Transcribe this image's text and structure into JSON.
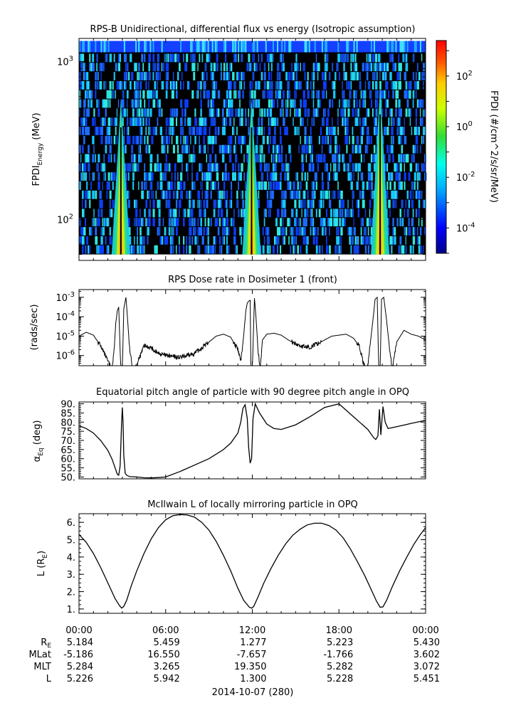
{
  "figure": {
    "date_label": "2014-10-07 (280)",
    "time_ticks": [
      "00:00",
      "06:00",
      "12:00",
      "18:00",
      "00:00"
    ],
    "ephemeris": [
      {
        "label": "R",
        "sub": "E",
        "values": [
          "5.184",
          "5.459",
          "1.277",
          "5.223",
          "5.430"
        ]
      },
      {
        "label": "MLat",
        "sub": "",
        "values": [
          "-5.186",
          "16.550",
          "-7.657",
          "-1.766",
          "3.602"
        ]
      },
      {
        "label": "MLT",
        "sub": "",
        "values": [
          "5.284",
          "3.265",
          "19.350",
          "5.282",
          "3.072"
        ]
      },
      {
        "label": "L",
        "sub": "",
        "values": [
          "5.226",
          "5.942",
          "1.300",
          "5.228",
          "5.451"
        ]
      }
    ]
  },
  "chart_data": [
    {
      "type": "heatmap",
      "title": "RPS-B  Unidirectional, differential flux vs energy (Isotropic assumption)",
      "ylabel_main": "FPDI",
      "ylabel_sub": "Energy",
      "ylabel_unit": " (MeV)",
      "yscale": "log",
      "ylim": [
        55,
        1400
      ],
      "xlim_hours": [
        0,
        24
      ],
      "y_ticks": [
        {
          "base": "10",
          "exp": "2"
        },
        {
          "base": "10",
          "exp": "3"
        }
      ],
      "colorbar": {
        "label": "FPDI (#/cm^2/s/sr/MeV)",
        "scale": "log",
        "range_exp": [
          -5,
          3.4
        ],
        "ticks": [
          {
            "base": "10",
            "exp": "-4"
          },
          {
            "base": "10",
            "exp": "-2"
          },
          {
            "base": "10",
            "exp": "0"
          },
          {
            "base": "10",
            "exp": "2"
          }
        ]
      },
      "peaks_hours": [
        2.9,
        11.95,
        20.85
      ],
      "colors": {
        "high": "#ff0000",
        "mid": "#33dd33",
        "low": "#0000ff",
        "fill": "#000000"
      }
    },
    {
      "type": "line",
      "title": "RPS  Dose rate in Dosimeter 1 (front)",
      "ylabel": "(rads/sec)",
      "yscale": "log",
      "ylim": [
        3e-07,
        0.0025
      ],
      "xlim_hours": [
        0,
        24
      ],
      "y_ticks": [
        {
          "base": "10",
          "exp": "-6"
        },
        {
          "base": "10",
          "exp": "-5"
        },
        {
          "base": "10",
          "exp": "-4"
        },
        {
          "base": "10",
          "exp": "-3"
        }
      ],
      "series": [
        {
          "x_hours": [
            0.0,
            0.5,
            1.0,
            1.5,
            2.0,
            2.3,
            2.45,
            2.55,
            2.65,
            2.75,
            2.9,
            3.0,
            3.1,
            3.25,
            3.35,
            3.5,
            3.7,
            4.0,
            4.5,
            5.0,
            5.5,
            6.0,
            6.5,
            7.0,
            7.5,
            8.0,
            8.5,
            9.0,
            9.5,
            10.0,
            10.5,
            11.0,
            11.2,
            11.4,
            11.55,
            11.65,
            11.75,
            11.85,
            11.9,
            12.0,
            12.15,
            12.25,
            12.4,
            12.55,
            12.7,
            13.0,
            13.5,
            14.0,
            14.5,
            15.0,
            15.5,
            16.0,
            16.5,
            17.0,
            17.5,
            18.0,
            18.5,
            19.0,
            19.4,
            19.7,
            19.95,
            20.15,
            20.35,
            20.5,
            20.65,
            20.75,
            20.85,
            20.95,
            21.1,
            21.3,
            21.5,
            21.7,
            22.0,
            22.5,
            23.0,
            23.5,
            24.0
          ],
          "y_log10": [
            -5.0,
            -4.8,
            -4.95,
            -5.5,
            -6.3,
            -6.7,
            -5.5,
            -4.3,
            -3.7,
            -3.5,
            -6.8,
            -6.8,
            -3.6,
            -3.0,
            -4.0,
            -5.6,
            -6.7,
            -6.5,
            -5.5,
            -5.6,
            -5.9,
            -6.0,
            -6.05,
            -6.1,
            -6.0,
            -5.9,
            -5.6,
            -5.3,
            -5.0,
            -4.9,
            -5.05,
            -5.7,
            -6.3,
            -5.0,
            -3.7,
            -3.3,
            -3.2,
            -3.15,
            -6.5,
            -6.7,
            -3.05,
            -4.0,
            -5.7,
            -6.7,
            -5.2,
            -4.9,
            -4.85,
            -4.95,
            -5.2,
            -5.4,
            -5.55,
            -5.55,
            -5.4,
            -5.2,
            -5.0,
            -4.95,
            -4.9,
            -5.1,
            -5.5,
            -6.4,
            -6.8,
            -5.5,
            -4.2,
            -3.1,
            -3.0,
            -6.5,
            -6.7,
            -3.1,
            -3.0,
            -4.2,
            -5.6,
            -6.7,
            -5.3,
            -4.7,
            -4.9,
            -5.0,
            -5.2
          ]
        }
      ]
    },
    {
      "type": "line",
      "title": "Equatorial pitch angle of particle with 90 degree pitch angle in OPQ",
      "ylabel_main": "α",
      "ylabel_sub": "Eq",
      "ylabel_unit": " (deg)",
      "ylim": [
        49,
        91
      ],
      "xlim_hours": [
        0,
        24
      ],
      "y_ticks": [
        "50.",
        "55.",
        "60.",
        "65.",
        "70.",
        "75.",
        "80.",
        "85.",
        "90."
      ],
      "series": [
        {
          "x_hours": [
            0.0,
            0.5,
            1.0,
            1.5,
            2.0,
            2.3,
            2.5,
            2.65,
            2.75,
            2.85,
            2.95,
            3.0,
            3.05,
            3.1,
            3.2,
            3.3,
            3.5,
            4.0,
            4.5,
            5.0,
            5.5,
            6.0,
            7.0,
            8.0,
            9.0,
            10.0,
            10.5,
            11.0,
            11.2,
            11.35,
            11.5,
            11.65,
            11.75,
            11.85,
            11.95,
            12.05,
            12.2,
            12.5,
            13.0,
            13.5,
            14.0,
            15.0,
            16.0,
            17.0,
            18.0,
            19.0,
            20.0,
            20.4,
            20.55,
            20.7,
            20.8,
            20.9,
            21.05,
            21.2,
            21.4,
            22.0,
            23.0,
            24.0
          ],
          "y": [
            78.0,
            76.5,
            74.0,
            70.0,
            64.5,
            59.5,
            55.0,
            51.5,
            51.0,
            56.0,
            80.0,
            88.0,
            80.0,
            62.0,
            52.0,
            51.0,
            50.2,
            50.0,
            49.6,
            49.5,
            49.7,
            50.0,
            53.0,
            56.5,
            60.0,
            65.0,
            68.5,
            74.0,
            80.0,
            87.5,
            89.5,
            82.0,
            66.0,
            57.5,
            60.0,
            82.0,
            90.0,
            85.0,
            79.0,
            76.5,
            76.0,
            78.5,
            83.0,
            88.0,
            90.0,
            83.0,
            76.0,
            71.5,
            70.5,
            72.5,
            87.0,
            73.0,
            88.5,
            80.0,
            76.5,
            77.5,
            79.3,
            81.0
          ]
        }
      ]
    },
    {
      "type": "line",
      "title": "McIlwain L of locally mirroring particle in OPQ",
      "ylabel_main": "L (R",
      "ylabel_sub": "E",
      "ylabel_unit": ")",
      "ylim": [
        0.75,
        6.5
      ],
      "xlim_hours": [
        0,
        24
      ],
      "y_ticks": [
        "1.",
        "2.",
        "3.",
        "4.",
        "5.",
        "6."
      ],
      "series": [
        {
          "x_hours": [
            0.0,
            0.5,
            1.0,
            1.5,
            2.0,
            2.5,
            2.8,
            2.95,
            3.1,
            3.3,
            3.6,
            4.0,
            4.5,
            5.0,
            5.5,
            6.0,
            6.5,
            7.0,
            7.5,
            8.0,
            8.5,
            9.0,
            9.5,
            10.0,
            10.5,
            11.0,
            11.4,
            11.8,
            11.95,
            12.1,
            12.4,
            12.8,
            13.3,
            13.8,
            14.3,
            14.8,
            15.3,
            15.8,
            16.3,
            16.8,
            17.3,
            17.8,
            18.3,
            18.8,
            19.3,
            19.8,
            20.3,
            20.6,
            20.85,
            21.05,
            21.3,
            21.7,
            22.2,
            22.7,
            23.2,
            23.6,
            24.0
          ],
          "y": [
            5.3,
            4.85,
            4.2,
            3.4,
            2.5,
            1.6,
            1.2,
            1.05,
            1.15,
            1.5,
            2.3,
            3.2,
            4.2,
            5.05,
            5.7,
            6.15,
            6.38,
            6.45,
            6.42,
            6.3,
            6.0,
            5.55,
            4.9,
            4.1,
            3.2,
            2.2,
            1.5,
            1.1,
            1.05,
            1.15,
            1.7,
            2.5,
            3.35,
            4.1,
            4.75,
            5.25,
            5.6,
            5.85,
            5.95,
            5.95,
            5.82,
            5.55,
            5.1,
            4.45,
            3.7,
            2.9,
            2.0,
            1.45,
            1.1,
            1.12,
            1.5,
            2.3,
            3.2,
            4.0,
            4.75,
            5.25,
            5.7
          ]
        }
      ]
    }
  ]
}
